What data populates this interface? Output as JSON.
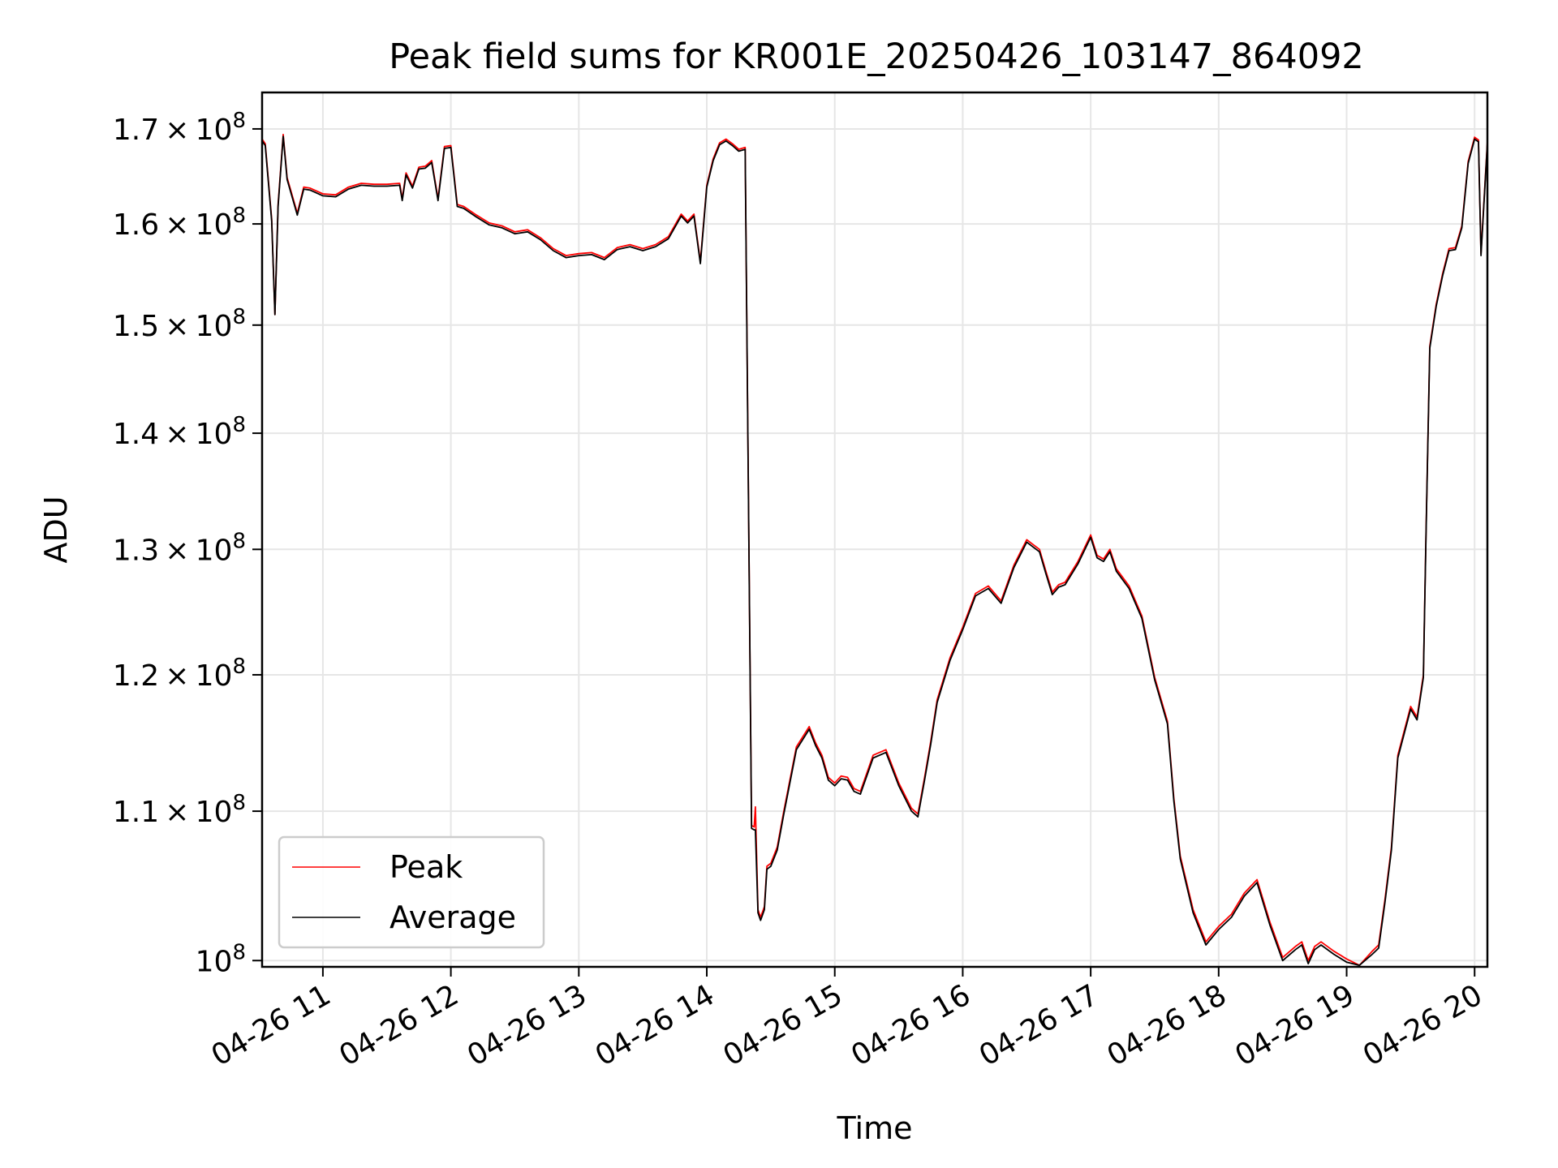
{
  "chart_data": {
    "type": "line",
    "title": "Peak field sums for KR001E_20250426_103147_864092",
    "xlabel": "Time",
    "ylabel": "ADU",
    "y_scale": "log",
    "x_unit": "hours on 2025-04-26",
    "xlim": [
      10.525,
      20.1
    ],
    "ylim": [
      99600000,
      174000000
    ],
    "x_ticks": [
      {
        "value": 11,
        "label": "04-26 11"
      },
      {
        "value": 12,
        "label": "04-26 12"
      },
      {
        "value": 13,
        "label": "04-26 13"
      },
      {
        "value": 14,
        "label": "04-26 14"
      },
      {
        "value": 15,
        "label": "04-26 15"
      },
      {
        "value": 16,
        "label": "04-26 16"
      },
      {
        "value": 17,
        "label": "04-26 17"
      },
      {
        "value": 18,
        "label": "04-26 18"
      },
      {
        "value": 19,
        "label": "04-26 19"
      },
      {
        "value": 20,
        "label": "04-26 20"
      }
    ],
    "y_ticks": [
      {
        "value": 100000000,
        "mant": "",
        "exp": "8"
      },
      {
        "value": 110000000,
        "mant": "1.1",
        "exp": "8"
      },
      {
        "value": 120000000,
        "mant": "1.2",
        "exp": "8"
      },
      {
        "value": 130000000,
        "mant": "1.3",
        "exp": "8"
      },
      {
        "value": 140000000,
        "mant": "1.4",
        "exp": "8"
      },
      {
        "value": 150000000,
        "mant": "1.5",
        "exp": "8"
      },
      {
        "value": 160000000,
        "mant": "1.6",
        "exp": "8"
      },
      {
        "value": 170000000,
        "mant": "1.7",
        "exp": "8"
      }
    ],
    "grid": true,
    "legend": {
      "placement": "lower-left"
    },
    "series": [
      {
        "name": "Peak",
        "color": "#ff0000"
      },
      {
        "name": "Average",
        "color": "#000000"
      }
    ],
    "x": [
      10.525,
      10.55,
      10.6,
      10.625,
      10.65,
      10.69,
      10.72,
      10.8,
      10.85,
      10.9,
      11.0,
      11.1,
      11.2,
      11.3,
      11.4,
      11.5,
      11.6,
      11.62,
      11.65,
      11.7,
      11.75,
      11.8,
      11.85,
      11.9,
      11.95,
      12.0,
      12.05,
      12.1,
      12.2,
      12.3,
      12.4,
      12.5,
      12.6,
      12.7,
      12.8,
      12.9,
      13.0,
      13.1,
      13.2,
      13.3,
      13.4,
      13.5,
      13.6,
      13.7,
      13.8,
      13.85,
      13.9,
      13.95,
      14.0,
      14.05,
      14.08,
      14.1,
      14.15,
      14.2,
      14.25,
      14.3,
      14.35,
      14.37,
      14.38,
      14.4,
      14.42,
      14.45,
      14.47,
      14.5,
      14.55,
      14.6,
      14.7,
      14.8,
      14.85,
      14.9,
      14.95,
      15.0,
      15.05,
      15.1,
      15.15,
      15.2,
      15.3,
      15.4,
      15.5,
      15.6,
      15.65,
      15.7,
      15.75,
      15.8,
      15.9,
      16.0,
      16.1,
      16.2,
      16.3,
      16.4,
      16.5,
      16.6,
      16.65,
      16.7,
      16.75,
      16.8,
      16.9,
      17.0,
      17.05,
      17.1,
      17.15,
      17.2,
      17.3,
      17.4,
      17.5,
      17.6,
      17.65,
      17.7,
      17.8,
      17.9,
      18.0,
      18.1,
      18.2,
      18.3,
      18.4,
      18.5,
      18.6,
      18.65,
      18.7,
      18.75,
      18.8,
      18.9,
      19.0,
      19.1,
      19.2,
      19.25,
      19.3,
      19.35,
      19.4,
      19.5,
      19.55,
      19.6,
      19.62,
      19.65,
      19.7,
      19.75,
      19.8,
      19.85,
      19.9,
      19.95,
      20.0,
      20.03,
      20.05,
      20.1
    ],
    "peak": [
      168900000,
      168400000,
      160500000,
      151000000,
      162000000,
      169400000,
      164800000,
      161100000,
      163800000,
      163700000,
      163100000,
      163000000,
      163800000,
      164200000,
      164100000,
      164100000,
      164200000,
      162600000,
      165300000,
      163900000,
      165900000,
      166000000,
      166600000,
      162600000,
      168100000,
      168200000,
      162000000,
      161800000,
      160900000,
      160100000,
      159800000,
      159200000,
      159400000,
      158600000,
      157500000,
      156800000,
      157000000,
      157100000,
      156600000,
      157600000,
      157900000,
      157500000,
      157900000,
      158700000,
      161000000,
      160300000,
      161000000,
      156200000,
      164000000,
      166800000,
      167800000,
      168500000,
      168900000,
      168400000,
      167800000,
      168000000,
      109000000,
      108900000,
      110300000,
      103300000,
      102800000,
      103500000,
      106200000,
      106400000,
      107500000,
      109900000,
      114600000,
      116100000,
      114900000,
      114000000,
      112400000,
      112000000,
      112500000,
      112400000,
      111600000,
      111400000,
      114000000,
      114400000,
      112000000,
      110200000,
      109800000,
      112300000,
      115000000,
      118100000,
      121300000,
      123700000,
      126400000,
      127000000,
      125800000,
      128700000,
      130800000,
      130000000,
      128200000,
      126500000,
      127100000,
      127300000,
      129000000,
      131200000,
      129500000,
      129200000,
      130000000,
      128400000,
      127000000,
      124600000,
      119800000,
      116500000,
      110900000,
      106900000,
      103300000,
      101200000,
      102200000,
      103000000,
      104400000,
      105300000,
      102500000,
      100200000,
      100900000,
      101200000,
      100000000,
      100900000,
      101200000,
      100600000,
      100100000,
      99700000,
      100600000,
      101000000,
      104000000,
      107500000,
      114000000,
      117600000,
      116800000,
      120000000,
      131200000,
      148000000,
      152000000,
      155000000,
      157500000,
      157600000,
      159800000,
      166500000,
      169100000,
      168800000,
      157000000,
      168700000
    ],
    "average": [
      168700000,
      168200000,
      160300000,
      151000000,
      161800000,
      169200000,
      164600000,
      160900000,
      163600000,
      163500000,
      162900000,
      162800000,
      163600000,
      164000000,
      163900000,
      163900000,
      164000000,
      162400000,
      165100000,
      163700000,
      165700000,
      165800000,
      166400000,
      162400000,
      167900000,
      168000000,
      161800000,
      161600000,
      160700000,
      159900000,
      159600000,
      159000000,
      159200000,
      158400000,
      157300000,
      156600000,
      156800000,
      156900000,
      156400000,
      157400000,
      157700000,
      157300000,
      157700000,
      158500000,
      160800000,
      160100000,
      160800000,
      156000000,
      163800000,
      166600000,
      167600000,
      168300000,
      168700000,
      168200000,
      167600000,
      167800000,
      108800000,
      108700000,
      108700000,
      103100000,
      102600000,
      103300000,
      106000000,
      106200000,
      107300000,
      109700000,
      114400000,
      115900000,
      114700000,
      113800000,
      112200000,
      111800000,
      112300000,
      112200000,
      111400000,
      111200000,
      113800000,
      114200000,
      111800000,
      110000000,
      109600000,
      112100000,
      114800000,
      117900000,
      121100000,
      123500000,
      126200000,
      126800000,
      125600000,
      128500000,
      130600000,
      129800000,
      128000000,
      126300000,
      126900000,
      127100000,
      128800000,
      131000000,
      129300000,
      129000000,
      129800000,
      128200000,
      126800000,
      124400000,
      119600000,
      116300000,
      110700000,
      106700000,
      103100000,
      101000000,
      102000000,
      102800000,
      104200000,
      105100000,
      102300000,
      100000000,
      100700000,
      101000000,
      99800000,
      100700000,
      101000000,
      100400000,
      99900000,
      99700000,
      100400000,
      100800000,
      103800000,
      107300000,
      113800000,
      117400000,
      116600000,
      119800000,
      131000000,
      147800000,
      151800000,
      154800000,
      157300000,
      157400000,
      159600000,
      166300000,
      168900000,
      168600000,
      156800000,
      168500000
    ],
    "annotations": []
  }
}
